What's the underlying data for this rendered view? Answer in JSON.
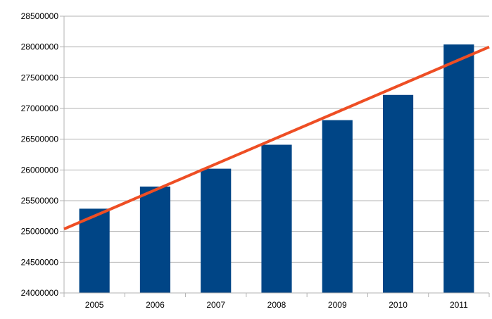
{
  "chart_data": {
    "type": "bar",
    "categories": [
      "2005",
      "2006",
      "2007",
      "2008",
      "2009",
      "2010",
      "2011"
    ],
    "series": [
      {
        "values": [
          25370000,
          25730000,
          26020000,
          26410000,
          26810000,
          27220000,
          28040000
        ]
      }
    ],
    "trendline": {
      "type": "linear",
      "start": [
        2004.5,
        25040000
      ],
      "end": [
        2011.5,
        28000000
      ]
    },
    "ylim": [
      24000000,
      28500000
    ],
    "yticks": [
      "24000000",
      "24500000",
      "25000000",
      "25500000",
      "26000000",
      "26500000",
      "27000000",
      "27500000",
      "28000000",
      "28500000"
    ],
    "xlabel": "",
    "ylabel": "",
    "title": "",
    "grid": true,
    "legend": "none",
    "colors": {
      "bar": "#004586",
      "trendline": "#ee4e24",
      "grid": "#b3b3b3",
      "axis": "#b3b3b3"
    }
  }
}
